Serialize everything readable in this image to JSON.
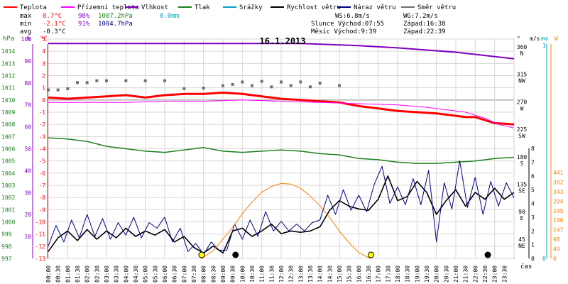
{
  "chart_data": {
    "type": "line",
    "title": "16.1.2013",
    "x_unit": "hours",
    "x_label": "čas",
    "x_ticks": [
      "00:00",
      "00:30",
      "01:00",
      "01:30",
      "02:00",
      "02:30",
      "03:00",
      "03:30",
      "04:00",
      "04:30",
      "05:00",
      "05:30",
      "06:00",
      "06:30",
      "07:00",
      "07:30",
      "08:00",
      "08:30",
      "09:00",
      "09:30",
      "10:00",
      "10:30",
      "11:00",
      "11:30",
      "12:00",
      "12:30",
      "13:00",
      "13:30",
      "14:00",
      "14:30",
      "15:00",
      "15:30",
      "16:00",
      "16:30",
      "17:00",
      "17:30",
      "18:00",
      "18:30",
      "19:00",
      "19:30",
      "20:00",
      "20:30",
      "21:00",
      "21:30",
      "22:00",
      "22:30",
      "23:00",
      "23:30"
    ],
    "legend": [
      {
        "label": "Teplota",
        "color": "#ff0000"
      },
      {
        "label": "Přízemní teplota",
        "color": "#ff00ff"
      },
      {
        "label": "Vlhkost",
        "color": "#8000c0"
      },
      {
        "label": "Tlak",
        "color": "#208020"
      },
      {
        "label": "Srážky",
        "color": "#00a0c0"
      },
      {
        "label": "Rychlost větru",
        "color": "#000000"
      },
      {
        "label": "Náraz větru",
        "color": "#000080"
      },
      {
        "label": "Směr větru",
        "color": "#707070"
      }
    ],
    "stats": {
      "max": {
        "label": "max",
        "temp": "0.7°C",
        "hum": "98%",
        "press": "1007.2hPa",
        "rain": "0.0mm"
      },
      "min": {
        "label": "min",
        "temp": "-2.1°C",
        "hum": "91%",
        "press": "1004.7hPa"
      },
      "avg": {
        "label": "avg",
        "temp": "-0.3°C"
      },
      "ws": "WS:6.8m/s",
      "wg": "WG:7.2m/s",
      "sun": "Slunce Východ:07:55",
      "sunset": "Západ:16:38",
      "moon": "Měsíc Východ:9:39",
      "moonset": "Západ:22:39"
    },
    "axes": {
      "hpa": {
        "title": "hPa",
        "min": 997,
        "max": 1015,
        "ticks": [
          997,
          998,
          999,
          1000,
          1001,
          1002,
          1003,
          1004,
          1005,
          1006,
          1007,
          1008,
          1009,
          1010,
          1011,
          1012,
          1013,
          1014
        ]
      },
      "pct": {
        "title": "%",
        "min": 0,
        "max": 100,
        "ticks": [
          10,
          20,
          30,
          40,
          50,
          60,
          70,
          80,
          90,
          100
        ]
      },
      "temp": {
        "title": "°C",
        "min": -13,
        "max": 5,
        "ticks": [
          5,
          4,
          3,
          2,
          1,
          0,
          -1,
          -2,
          -3,
          -4,
          -5,
          -6,
          -7,
          -8,
          -9,
          -10,
          -11,
          -12,
          -13
        ]
      },
      "dir": {
        "title": "°",
        "ticks": [
          {
            "deg": "360",
            "lab": "N"
          },
          {
            "deg": "315",
            "lab": "NW"
          },
          {
            "deg": "270",
            "lab": "W"
          },
          {
            "deg": "225",
            "lab": "SW"
          },
          {
            "deg": "180",
            "lab": "S"
          },
          {
            "deg": "135",
            "lab": "SE"
          },
          {
            "deg": "90",
            "lab": "E"
          },
          {
            "deg": "45",
            "lab": "NE"
          }
        ]
      },
      "ms": {
        "title": "m/s",
        "min": 0,
        "max": 8,
        "ticks": [
          0,
          1,
          2,
          3,
          4,
          5,
          6,
          7,
          8
        ]
      },
      "mm": {
        "title": "mm",
        "top": "1",
        "bottom": "0"
      },
      "wm2": {
        "title": "W",
        "min": 0,
        "max": 441,
        "ticks": [
          0,
          49,
          98,
          147,
          196,
          245,
          294,
          343,
          392,
          441
        ]
      }
    },
    "series": [
      {
        "name": "Vlhkost",
        "unit": "%",
        "color": "#8000c0",
        "points": [
          [
            0,
            98
          ],
          [
            3,
            98
          ],
          [
            6,
            98
          ],
          [
            9,
            98
          ],
          [
            12,
            98
          ],
          [
            13,
            98
          ],
          [
            16,
            97
          ],
          [
            18,
            96
          ],
          [
            19.5,
            95
          ],
          [
            21,
            94
          ],
          [
            22,
            93
          ],
          [
            24,
            91
          ]
        ]
      },
      {
        "name": "Tlak",
        "unit": "hPa",
        "color": "#208020",
        "points": [
          [
            0,
            1006.9
          ],
          [
            1,
            1006.8
          ],
          [
            2,
            1006.6
          ],
          [
            3,
            1006.2
          ],
          [
            4,
            1006.0
          ],
          [
            5,
            1005.8
          ],
          [
            6,
            1005.7
          ],
          [
            7,
            1005.9
          ],
          [
            8,
            1006.1
          ],
          [
            9,
            1005.8
          ],
          [
            10,
            1005.7
          ],
          [
            11,
            1005.8
          ],
          [
            12,
            1005.9
          ],
          [
            13,
            1005.8
          ],
          [
            14,
            1005.6
          ],
          [
            15,
            1005.5
          ],
          [
            16,
            1005.2
          ],
          [
            17,
            1005.1
          ],
          [
            18,
            1004.9
          ],
          [
            19,
            1004.8
          ],
          [
            20,
            1004.8
          ],
          [
            21,
            1004.9
          ],
          [
            22,
            1005.0
          ],
          [
            23,
            1005.2
          ],
          [
            24,
            1005.3
          ]
        ]
      },
      {
        "name": "Teplota",
        "unit": "°C",
        "color": "#ff0000",
        "points": [
          [
            0,
            0.2
          ],
          [
            1,
            0.1
          ],
          [
            2,
            0.2
          ],
          [
            3,
            0.3
          ],
          [
            4,
            0.4
          ],
          [
            5,
            0.2
          ],
          [
            6,
            0.4
          ],
          [
            7,
            0.5
          ],
          [
            8,
            0.5
          ],
          [
            9,
            0.6
          ],
          [
            10,
            0.5
          ],
          [
            11,
            0.3
          ],
          [
            12,
            0.1
          ],
          [
            13,
            0.0
          ],
          [
            14,
            -0.1
          ],
          [
            15,
            -0.2
          ],
          [
            16,
            -0.5
          ],
          [
            17,
            -0.7
          ],
          [
            18,
            -0.9
          ],
          [
            19,
            -1.0
          ],
          [
            20,
            -1.1
          ],
          [
            21,
            -1.3
          ],
          [
            21.5,
            -1.4
          ],
          [
            22,
            -1.4
          ],
          [
            23,
            -1.9
          ],
          [
            24,
            -2.0
          ]
        ]
      },
      {
        "name": "Přízemní teplota",
        "unit": "°C",
        "color": "#ff00ff",
        "points": [
          [
            0,
            -0.2
          ],
          [
            2,
            -0.2
          ],
          [
            4,
            -0.2
          ],
          [
            6,
            -0.1
          ],
          [
            8,
            -0.1
          ],
          [
            10,
            0.0
          ],
          [
            12,
            -0.1
          ],
          [
            14,
            -0.2
          ],
          [
            16,
            -0.3
          ],
          [
            18,
            -0.4
          ],
          [
            19.5,
            -0.6
          ],
          [
            20.5,
            -0.8
          ],
          [
            21.5,
            -1.0
          ],
          [
            22.5,
            -1.5
          ],
          [
            23.2,
            -2.0
          ],
          [
            24,
            -2.3
          ]
        ]
      },
      {
        "name": "Rychlost větru",
        "unit": "m/s",
        "color": "#000000",
        "points": [
          [
            0,
            0.5
          ],
          [
            0.5,
            1.5
          ],
          [
            1,
            2.0
          ],
          [
            1.5,
            1.3
          ],
          [
            2,
            2.1
          ],
          [
            2.5,
            1.4
          ],
          [
            3,
            2.0
          ],
          [
            3.5,
            1.5
          ],
          [
            4,
            2.2
          ],
          [
            4.5,
            1.6
          ],
          [
            5,
            2.0
          ],
          [
            5.5,
            1.7
          ],
          [
            6,
            2.1
          ],
          [
            6.5,
            1.2
          ],
          [
            7,
            1.6
          ],
          [
            7.5,
            0.8
          ],
          [
            8,
            0.4
          ],
          [
            8.5,
            0.9
          ],
          [
            9,
            0.4
          ],
          [
            9.5,
            2.0
          ],
          [
            10,
            2.2
          ],
          [
            10.5,
            1.6
          ],
          [
            11,
            2.0
          ],
          [
            11.5,
            2.5
          ],
          [
            12,
            1.8
          ],
          [
            12.5,
            2.0
          ],
          [
            13,
            1.9
          ],
          [
            13.5,
            2.0
          ],
          [
            14,
            2.3
          ],
          [
            14.5,
            3.5
          ],
          [
            15,
            4.2
          ],
          [
            15.5,
            3.8
          ],
          [
            16,
            3.6
          ],
          [
            16.5,
            3.5
          ],
          [
            17,
            4.3
          ],
          [
            17.5,
            6.0
          ],
          [
            18,
            4.2
          ],
          [
            18.5,
            4.5
          ],
          [
            19,
            5.6
          ],
          [
            19.5,
            4.8
          ],
          [
            20,
            3.2
          ],
          [
            20.5,
            4.2
          ],
          [
            21,
            5.0
          ],
          [
            21.5,
            3.8
          ],
          [
            22,
            4.8
          ],
          [
            22.5,
            4.3
          ],
          [
            23,
            5.1
          ],
          [
            23.5,
            4.3
          ],
          [
            24,
            4.8
          ]
        ]
      },
      {
        "name": "Náraz větru",
        "unit": "m/s",
        "color": "#000080",
        "points": [
          [
            0,
            0.9
          ],
          [
            0.4,
            2.4
          ],
          [
            0.8,
            1.2
          ],
          [
            1.2,
            2.8
          ],
          [
            1.6,
            1.5
          ],
          [
            2,
            3.2
          ],
          [
            2.4,
            1.6
          ],
          [
            2.8,
            2.9
          ],
          [
            3.2,
            1.4
          ],
          [
            3.6,
            2.6
          ],
          [
            4,
            1.7
          ],
          [
            4.4,
            3.0
          ],
          [
            4.8,
            1.5
          ],
          [
            5.2,
            2.6
          ],
          [
            5.6,
            2.2
          ],
          [
            6,
            3.0
          ],
          [
            6.4,
            1.2
          ],
          [
            6.8,
            2.2
          ],
          [
            7.2,
            0.5
          ],
          [
            7.6,
            1.1
          ],
          [
            8,
            0.3
          ],
          [
            8.4,
            1.2
          ],
          [
            8.8,
            0.6
          ],
          [
            9.2,
            0.6
          ],
          [
            9.6,
            2.5
          ],
          [
            10,
            1.4
          ],
          [
            10.4,
            2.8
          ],
          [
            10.8,
            1.6
          ],
          [
            11.2,
            3.4
          ],
          [
            11.6,
            2.0
          ],
          [
            12,
            2.7
          ],
          [
            12.4,
            2.0
          ],
          [
            12.8,
            2.5
          ],
          [
            13.2,
            2.0
          ],
          [
            13.6,
            2.6
          ],
          [
            14,
            2.8
          ],
          [
            14.4,
            4.6
          ],
          [
            14.8,
            3.2
          ],
          [
            15.2,
            5.0
          ],
          [
            15.6,
            3.5
          ],
          [
            16,
            4.6
          ],
          [
            16.4,
            3.4
          ],
          [
            16.8,
            5.4
          ],
          [
            17.2,
            6.7
          ],
          [
            17.6,
            4.0
          ],
          [
            18,
            5.2
          ],
          [
            18.4,
            3.9
          ],
          [
            18.8,
            5.8
          ],
          [
            19.2,
            3.9
          ],
          [
            19.6,
            6.4
          ],
          [
            20,
            1.2
          ],
          [
            20.4,
            5.5
          ],
          [
            20.8,
            3.6
          ],
          [
            21.2,
            7.1
          ],
          [
            21.6,
            3.7
          ],
          [
            22,
            5.9
          ],
          [
            22.4,
            3.2
          ],
          [
            22.8,
            5.6
          ],
          [
            23.2,
            3.8
          ],
          [
            23.6,
            5.5
          ],
          [
            24,
            4.4
          ]
        ]
      },
      {
        "name": "Směr větru",
        "unit": "°",
        "color": "#707070",
        "points": [
          [
            0,
            293
          ],
          [
            0.5,
            293
          ],
          [
            1,
            295
          ],
          [
            1.5,
            305
          ],
          [
            2,
            305
          ],
          [
            2.5,
            308
          ],
          [
            3,
            308
          ],
          [
            4,
            308
          ],
          [
            5,
            308
          ],
          [
            6,
            308
          ],
          [
            7,
            295
          ],
          [
            8,
            296
          ],
          [
            9,
            300
          ],
          [
            9.5,
            302
          ],
          [
            10,
            306
          ],
          [
            10.5,
            300
          ],
          [
            11,
            307
          ],
          [
            11.5,
            298
          ],
          [
            12,
            306
          ],
          [
            12.5,
            300
          ],
          [
            13,
            306
          ],
          [
            13.5,
            298
          ],
          [
            14,
            304
          ],
          [
            15,
            300
          ]
        ]
      },
      {
        "name": "Sluneční záření",
        "unit": "W",
        "color": "#ff8000",
        "points": [
          [
            7.9,
            0
          ],
          [
            8.5,
            40
          ],
          [
            9,
            100
          ],
          [
            9.5,
            160
          ],
          [
            10,
            230
          ],
          [
            10.5,
            290
          ],
          [
            11,
            340
          ],
          [
            11.5,
            370
          ],
          [
            12,
            385
          ],
          [
            12.5,
            382
          ],
          [
            13,
            360
          ],
          [
            13.5,
            320
          ],
          [
            14,
            270
          ],
          [
            14.5,
            210
          ],
          [
            15,
            140
          ],
          [
            15.5,
            80
          ],
          [
            16,
            30
          ],
          [
            16.6,
            0
          ]
        ]
      }
    ],
    "markers": [
      {
        "name": "sunrise-marker",
        "hour": 7.9,
        "color": "#ffff00"
      },
      {
        "name": "moonrise-marker",
        "hour": 9.65,
        "color": "#000000"
      },
      {
        "name": "sunset-marker",
        "hour": 16.63,
        "color": "#ffff00"
      },
      {
        "name": "moonset-marker",
        "hour": 22.65,
        "color": "#000000"
      }
    ]
  }
}
